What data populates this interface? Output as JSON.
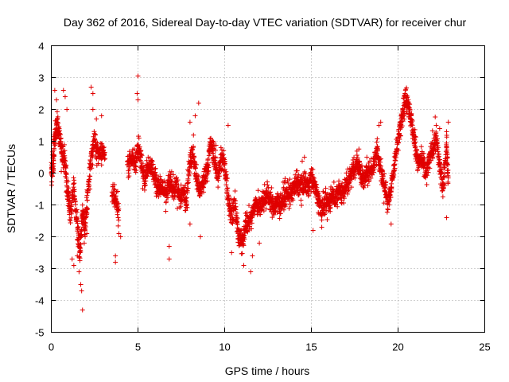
{
  "chart_data": {
    "type": "scatter",
    "title": "Day 362 of 2016, Sidereal Day-to-day VTEC variation (SDTVAR) for receiver chur",
    "xlabel": "GPS time / hours",
    "ylabel": "SDTVAR / TECUs",
    "xlim": [
      0,
      25
    ],
    "ylim": [
      -5,
      4
    ],
    "xticks": [
      0,
      5,
      10,
      15,
      20,
      25
    ],
    "yticks": [
      -5,
      -4,
      -3,
      -2,
      -1,
      0,
      1,
      2,
      3,
      4
    ],
    "xtick_labels": [
      "0",
      "5",
      "10",
      "15",
      "20",
      "25"
    ],
    "ytick_labels": [
      "-5",
      "-4",
      "-3",
      "-2",
      "-1",
      "0",
      "1",
      "2",
      "3",
      "4"
    ],
    "grid": true,
    "marker": "+",
    "color": "#e00000",
    "trend": [
      [
        0.0,
        0.0
      ],
      [
        0.1,
        0.2
      ],
      [
        0.2,
        1.2
      ],
      [
        0.35,
        1.6
      ],
      [
        0.5,
        1.0
      ],
      [
        0.65,
        0.5
      ],
      [
        0.8,
        0.3
      ],
      [
        0.95,
        -0.6
      ],
      [
        1.1,
        -1.3
      ],
      [
        1.3,
        -0.4
      ],
      [
        1.5,
        -1.7
      ],
      [
        1.65,
        -2.6
      ],
      [
        1.8,
        -1.2
      ],
      [
        1.95,
        -1.8
      ],
      [
        2.1,
        -0.6
      ],
      [
        2.3,
        0.5
      ],
      [
        2.5,
        1.0
      ],
      [
        2.7,
        0.6
      ],
      [
        2.9,
        0.8
      ],
      [
        3.1,
        0.5
      ],
      [
        3.4,
        null
      ],
      [
        3.5,
        -0.6
      ],
      [
        3.7,
        -0.9
      ],
      [
        3.9,
        -1.2
      ],
      [
        4.0,
        null
      ],
      [
        4.4,
        0.2
      ],
      [
        4.6,
        0.5
      ],
      [
        4.8,
        0.3
      ],
      [
        5.0,
        0.8
      ],
      [
        5.2,
        0.4
      ],
      [
        5.4,
        -0.2
      ],
      [
        5.6,
        0.3
      ],
      [
        5.8,
        0.1
      ],
      [
        6.0,
        -0.2
      ],
      [
        6.2,
        -0.4
      ],
      [
        6.4,
        -0.5
      ],
      [
        6.6,
        -0.7
      ],
      [
        6.8,
        -0.3
      ],
      [
        7.0,
        -0.5
      ],
      [
        7.2,
        -0.4
      ],
      [
        7.4,
        -0.8
      ],
      [
        7.6,
        -0.6
      ],
      [
        7.8,
        -0.9
      ],
      [
        8.0,
        0.5
      ],
      [
        8.2,
        0.6
      ],
      [
        8.4,
        -0.3
      ],
      [
        8.6,
        -0.6
      ],
      [
        8.8,
        -0.2
      ],
      [
        9.0,
        0.2
      ],
      [
        9.2,
        0.9
      ],
      [
        9.4,
        0.5
      ],
      [
        9.6,
        -0.1
      ],
      [
        9.8,
        0.5
      ],
      [
        10.0,
        0.3
      ],
      [
        10.2,
        -0.8
      ],
      [
        10.4,
        -1.3
      ],
      [
        10.6,
        -1.0
      ],
      [
        10.8,
        -2.0
      ],
      [
        11.0,
        -2.2
      ],
      [
        11.2,
        -1.6
      ],
      [
        11.4,
        -1.5
      ],
      [
        11.6,
        -1.3
      ],
      [
        11.8,
        -0.9
      ],
      [
        12.0,
        -1.1
      ],
      [
        12.2,
        -0.9
      ],
      [
        12.4,
        -0.7
      ],
      [
        12.6,
        -0.8
      ],
      [
        12.8,
        -1.1
      ],
      [
        13.0,
        -0.9
      ],
      [
        13.2,
        -1.0
      ],
      [
        13.4,
        -0.8
      ],
      [
        13.6,
        -0.6
      ],
      [
        13.8,
        -0.7
      ],
      [
        14.0,
        -0.5
      ],
      [
        14.2,
        -0.3
      ],
      [
        14.4,
        -0.4
      ],
      [
        14.6,
        -0.3
      ],
      [
        14.8,
        -0.4
      ],
      [
        15.0,
        -0.1
      ],
      [
        15.2,
        -0.4
      ],
      [
        15.4,
        -0.8
      ],
      [
        15.6,
        -1.1
      ],
      [
        15.8,
        -1.0
      ],
      [
        16.0,
        -0.9
      ],
      [
        16.2,
        -0.7
      ],
      [
        16.4,
        -0.8
      ],
      [
        16.6,
        -0.5
      ],
      [
        16.8,
        -0.6
      ],
      [
        17.0,
        -0.4
      ],
      [
        17.2,
        -0.2
      ],
      [
        17.4,
        0.1
      ],
      [
        17.6,
        0.3
      ],
      [
        17.8,
        0.2
      ],
      [
        18.0,
        -0.3
      ],
      [
        18.2,
        0.0
      ],
      [
        18.4,
        0.1
      ],
      [
        18.6,
        0.3
      ],
      [
        18.8,
        0.8
      ],
      [
        19.0,
        0.1
      ],
      [
        19.2,
        -0.4
      ],
      [
        19.4,
        -0.9
      ],
      [
        19.6,
        -0.5
      ],
      [
        19.8,
        0.3
      ],
      [
        20.0,
        1.0
      ],
      [
        20.2,
        1.8
      ],
      [
        20.4,
        2.3
      ],
      [
        20.6,
        2.2
      ],
      [
        20.8,
        1.5
      ],
      [
        21.0,
        0.8
      ],
      [
        21.2,
        0.3
      ],
      [
        21.4,
        0.5
      ],
      [
        21.6,
        -0.1
      ],
      [
        21.8,
        0.4
      ],
      [
        22.0,
        0.8
      ],
      [
        22.2,
        1.1
      ],
      [
        22.4,
        0.2
      ],
      [
        22.6,
        -0.5
      ],
      [
        22.8,
        1.0
      ],
      [
        22.9,
        -0.3
      ]
    ],
    "outliers": [
      [
        0.2,
        2.6
      ],
      [
        0.3,
        2.3
      ],
      [
        0.7,
        2.6
      ],
      [
        0.8,
        2.4
      ],
      [
        0.9,
        2.0
      ],
      [
        1.2,
        -2.7
      ],
      [
        1.3,
        -2.9
      ],
      [
        1.5,
        -2.6
      ],
      [
        1.6,
        -3.1
      ],
      [
        1.7,
        -3.5
      ],
      [
        1.75,
        -3.7
      ],
      [
        1.8,
        -4.3
      ],
      [
        1.9,
        -2.2
      ],
      [
        2.05,
        -1.9
      ],
      [
        2.3,
        2.7
      ],
      [
        2.4,
        2.5
      ],
      [
        2.4,
        2.0
      ],
      [
        2.6,
        1.7
      ],
      [
        2.9,
        1.8
      ],
      [
        3.7,
        -2.6
      ],
      [
        3.7,
        -2.8
      ],
      [
        3.9,
        -1.9
      ],
      [
        4.0,
        -2.0
      ],
      [
        5.0,
        3.05
      ],
      [
        4.95,
        2.5
      ],
      [
        5.0,
        2.3
      ],
      [
        6.8,
        -2.3
      ],
      [
        6.8,
        -2.7
      ],
      [
        6.6,
        -1.2
      ],
      [
        8.0,
        1.6
      ],
      [
        8.3,
        1.8
      ],
      [
        8.5,
        2.2
      ],
      [
        8.6,
        -2.0
      ],
      [
        8.0,
        -1.6
      ],
      [
        10.2,
        1.5
      ],
      [
        10.4,
        -2.5
      ],
      [
        11.1,
        -2.9
      ],
      [
        11.5,
        -3.1
      ],
      [
        11.6,
        -2.6
      ],
      [
        12.0,
        -2.2
      ],
      [
        14.6,
        0.5
      ],
      [
        15.1,
        -1.8
      ],
      [
        15.6,
        -1.7
      ],
      [
        18.9,
        1.5
      ],
      [
        19.0,
        1.6
      ],
      [
        19.6,
        -1.6
      ],
      [
        20.4,
        2.5
      ],
      [
        22.2,
        1.5
      ],
      [
        22.4,
        1.4
      ],
      [
        22.9,
        1.6
      ],
      [
        22.8,
        -1.4
      ]
    ]
  }
}
